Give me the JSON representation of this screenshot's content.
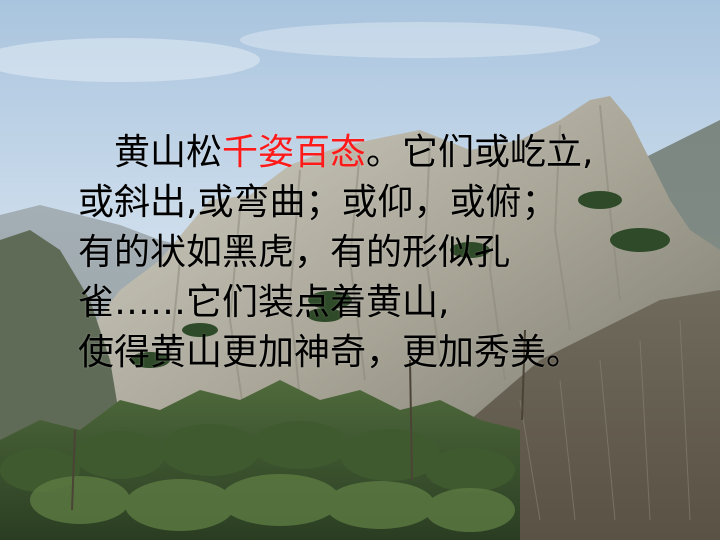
{
  "slide": {
    "line1_a": "黄山松",
    "line1_highlight": "千姿百态",
    "line1_b": "。它们或屹立,",
    "line2": "或斜出,或弯曲；或仰，或俯；",
    "line3": "有的状如黑虎，有的形似孔",
    "line4": "雀……它们装点着黄山,",
    "line5": "使得黄山更加神奇，更加秀美。",
    "highlight_color": "#ff1a1a"
  },
  "background": {
    "subject": "mountain-landscape-photo"
  }
}
